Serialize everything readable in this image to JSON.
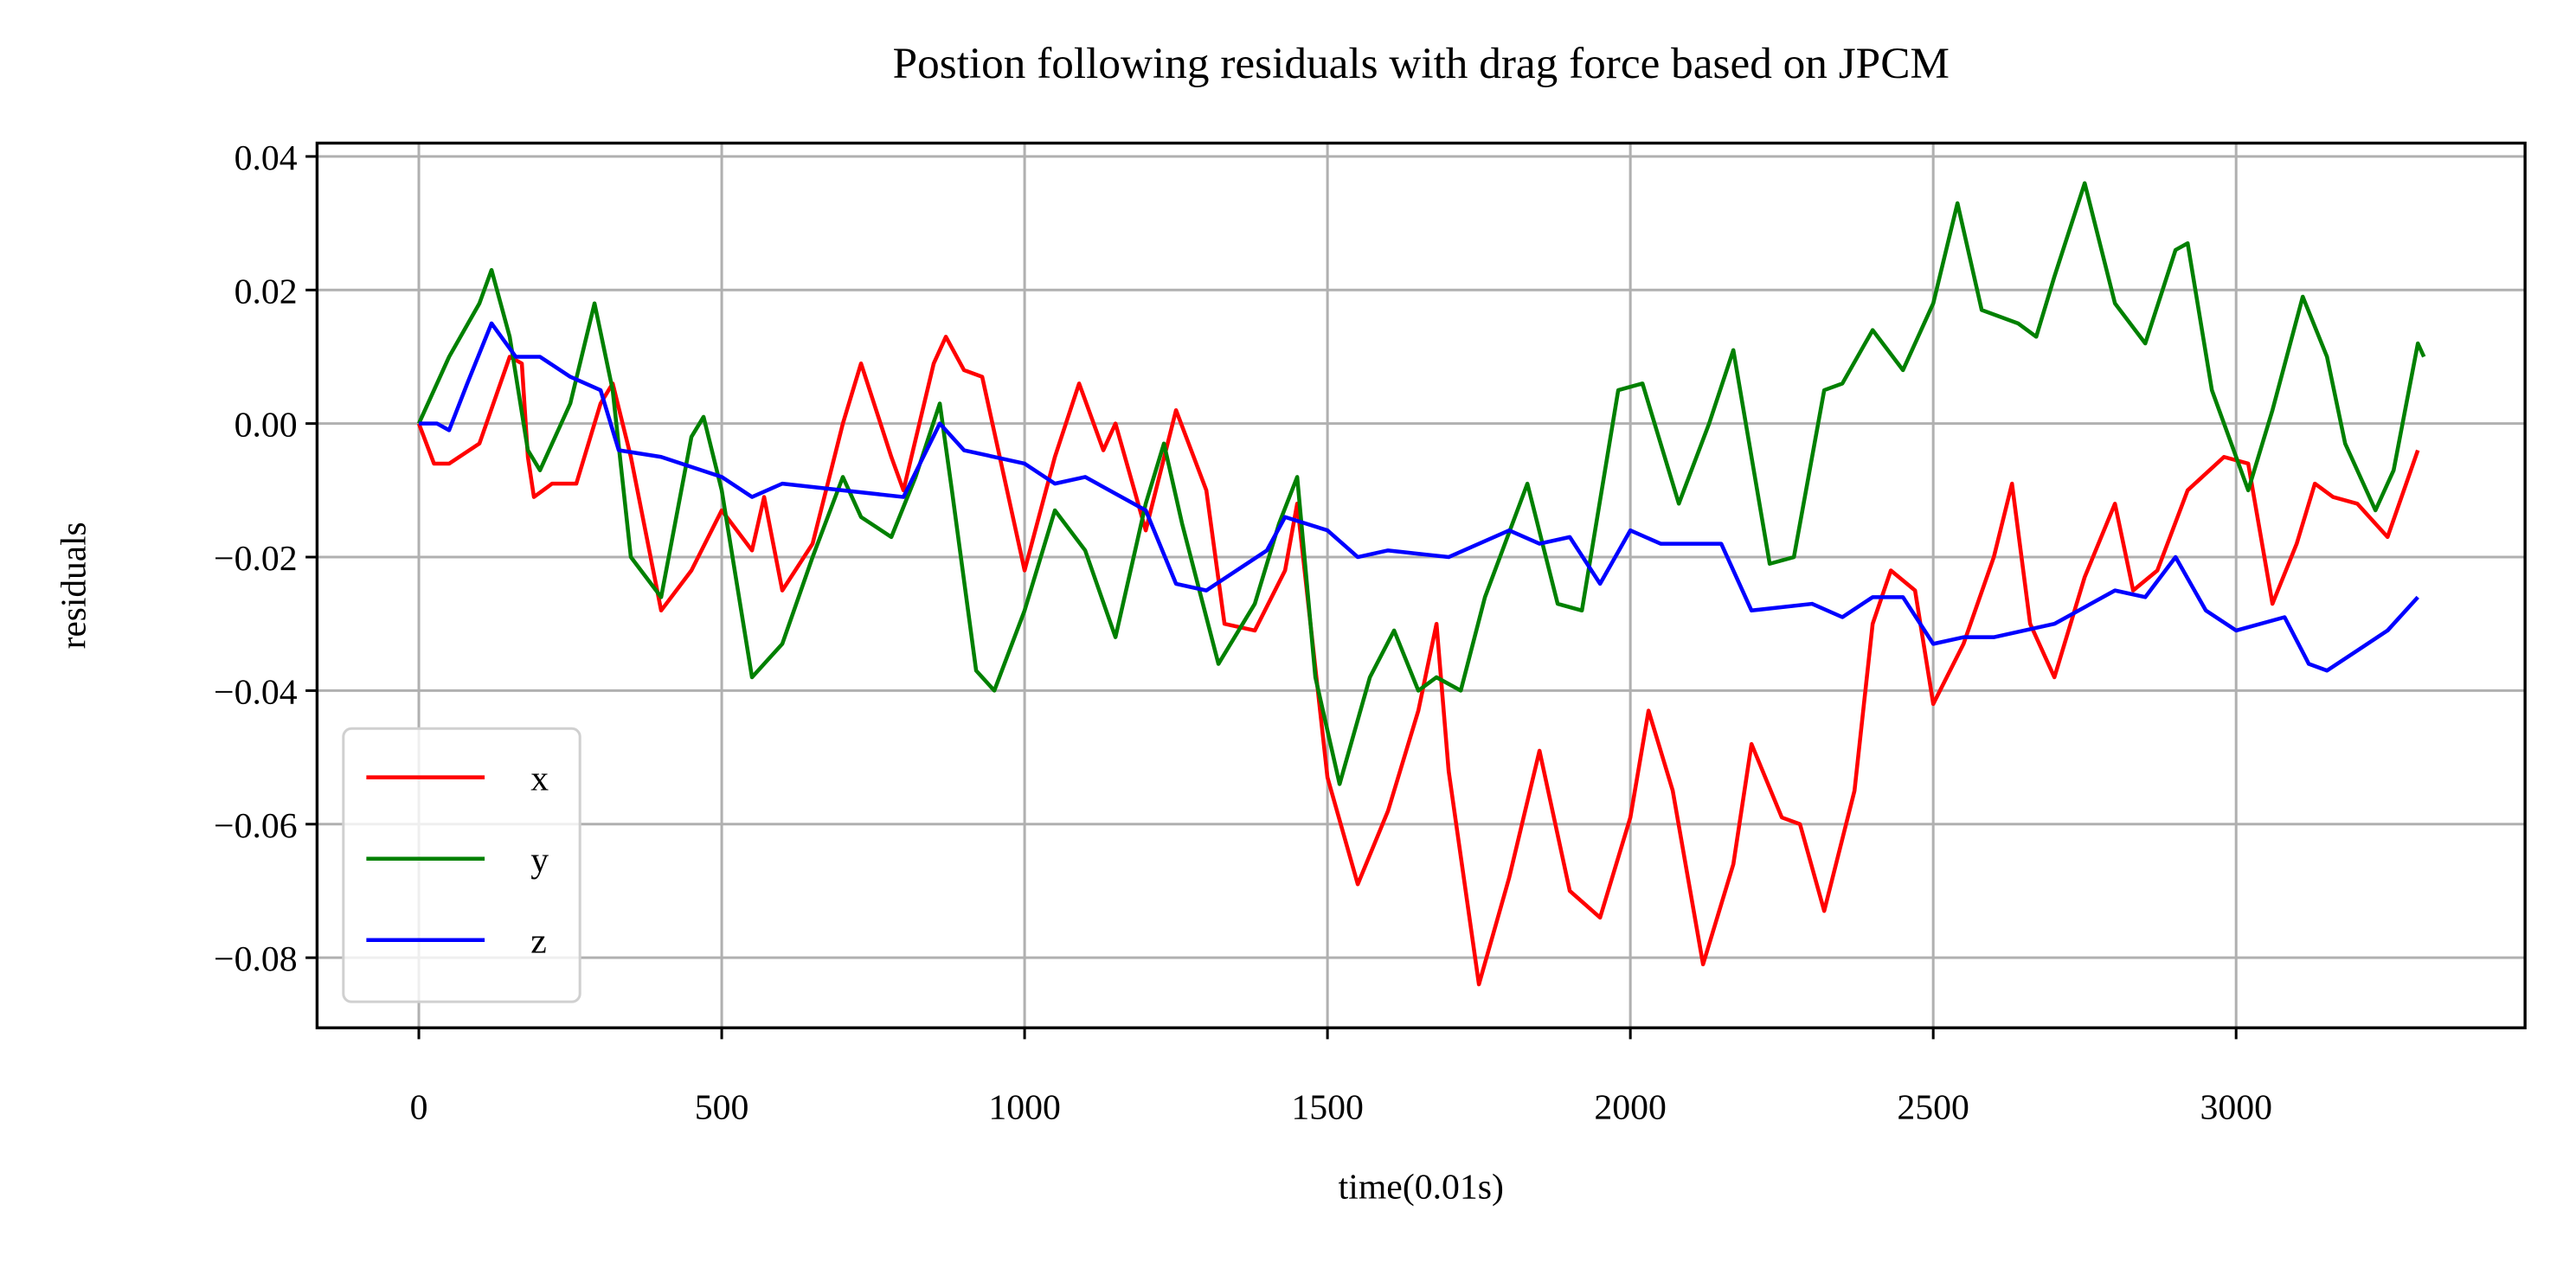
{
  "chart_data": {
    "type": "line",
    "title": "Postion following residuals with drag force based on JPCM",
    "x_label": "time(0.01s)",
    "y_label": "residuals",
    "xlim": [
      -168,
      3477
    ],
    "ylim": [
      -0.0905,
      0.042
    ],
    "xticks": [
      0,
      500,
      1000,
      1500,
      2000,
      2500,
      3000
    ],
    "yticks": [
      {
        "value": 0.04,
        "label": "0.04"
      },
      {
        "value": 0.02,
        "label": "0.02"
      },
      {
        "value": 0.0,
        "label": "0.00"
      },
      {
        "value": -0.02,
        "label": "−0.02"
      },
      {
        "value": -0.04,
        "label": "−0.04"
      },
      {
        "value": -0.06,
        "label": "−0.06"
      },
      {
        "value": -0.08,
        "label": "−0.08"
      }
    ],
    "grid": true,
    "legend": "lower left",
    "series": [
      {
        "name": "x",
        "color": "#ff0000",
        "x": [
          0,
          25,
          50,
          100,
          150,
          170,
          180,
          190,
          220,
          260,
          300,
          320,
          350,
          400,
          450,
          500,
          550,
          570,
          600,
          650,
          700,
          730,
          780,
          800,
          850,
          870,
          900,
          930,
          1000,
          1050,
          1090,
          1130,
          1150,
          1200,
          1250,
          1300,
          1330,
          1380,
          1430,
          1450,
          1500,
          1550,
          1600,
          1650,
          1680,
          1700,
          1750,
          1800,
          1850,
          1900,
          1950,
          2000,
          2030,
          2070,
          2120,
          2170,
          2200,
          2250,
          2280,
          2320,
          2370,
          2400,
          2430,
          2470,
          2500,
          2550,
          2600,
          2630,
          2660,
          2700,
          2750,
          2800,
          2830,
          2870,
          2920,
          2980,
          3020,
          3060,
          3100,
          3130,
          3160,
          3200,
          3250,
          3300
        ],
        "values": [
          0,
          -0.006,
          -0.006,
          -0.003,
          0.01,
          0.009,
          -0.005,
          -0.011,
          -0.009,
          -0.009,
          0.003,
          0.006,
          -0.005,
          -0.028,
          -0.022,
          -0.013,
          -0.019,
          -0.011,
          -0.025,
          -0.018,
          0.0,
          0.009,
          -0.005,
          -0.01,
          0.009,
          0.013,
          0.008,
          0.007,
          -0.022,
          -0.005,
          0.006,
          -0.004,
          0,
          -0.016,
          0.002,
          -0.01,
          -0.03,
          -0.031,
          -0.022,
          -0.012,
          -0.053,
          -0.069,
          -0.058,
          -0.043,
          -0.03,
          -0.052,
          -0.084,
          -0.068,
          -0.049,
          -0.07,
          -0.074,
          -0.059,
          -0.043,
          -0.055,
          -0.081,
          -0.066,
          -0.048,
          -0.059,
          -0.06,
          -0.073,
          -0.055,
          -0.03,
          -0.022,
          -0.025,
          -0.042,
          -0.033,
          -0.02,
          -0.009,
          -0.03,
          -0.038,
          -0.023,
          -0.012,
          -0.025,
          -0.022,
          -0.01,
          -0.005,
          -0.006,
          -0.027,
          -0.018,
          -0.009,
          -0.011,
          -0.012,
          -0.017,
          -0.004
        ]
      },
      {
        "name": "y",
        "color": "#008000",
        "x": [
          0,
          50,
          100,
          120,
          150,
          180,
          200,
          250,
          290,
          320,
          350,
          400,
          450,
          470,
          500,
          550,
          600,
          650,
          700,
          730,
          780,
          820,
          860,
          880,
          920,
          950,
          1000,
          1050,
          1100,
          1150,
          1200,
          1230,
          1260,
          1320,
          1380,
          1420,
          1450,
          1480,
          1520,
          1570,
          1610,
          1650,
          1680,
          1720,
          1760,
          1830,
          1880,
          1920,
          1980,
          2020,
          2080,
          2130,
          2170,
          2230,
          2270,
          2320,
          2350,
          2400,
          2450,
          2500,
          2540,
          2580,
          2640,
          2670,
          2700,
          2750,
          2800,
          2850,
          2900,
          2920,
          2960,
          3020,
          3060,
          3110,
          3150,
          3180,
          3230,
          3260,
          3300,
          3310
        ],
        "values": [
          0,
          0.01,
          0.018,
          0.023,
          0.013,
          -0.004,
          -0.007,
          0.003,
          0.018,
          0.005,
          -0.02,
          -0.026,
          -0.002,
          0.001,
          -0.01,
          -0.038,
          -0.033,
          -0.02,
          -0.008,
          -0.014,
          -0.017,
          -0.008,
          0.003,
          -0.01,
          -0.037,
          -0.04,
          -0.028,
          -0.013,
          -0.019,
          -0.032,
          -0.012,
          -0.003,
          -0.015,
          -0.036,
          -0.027,
          -0.015,
          -0.008,
          -0.038,
          -0.054,
          -0.038,
          -0.031,
          -0.04,
          -0.038,
          -0.04,
          -0.026,
          -0.009,
          -0.027,
          -0.028,
          0.005,
          0.006,
          -0.012,
          0.0,
          0.011,
          -0.021,
          -0.02,
          0.005,
          0.006,
          0.014,
          0.008,
          0.018,
          0.033,
          0.017,
          0.015,
          0.013,
          0.022,
          0.036,
          0.018,
          0.012,
          0.026,
          0.027,
          0.005,
          -0.01,
          0.002,
          0.019,
          0.01,
          -0.003,
          -0.013,
          -0.007,
          0.012,
          0.01
        ]
      },
      {
        "name": "z",
        "color": "#0000ff",
        "x": [
          0,
          30,
          50,
          80,
          120,
          160,
          200,
          250,
          300,
          330,
          400,
          500,
          550,
          600,
          700,
          800,
          860,
          900,
          1000,
          1050,
          1100,
          1200,
          1250,
          1300,
          1400,
          1430,
          1500,
          1550,
          1600,
          1700,
          1800,
          1850,
          1900,
          1950,
          2000,
          2050,
          2150,
          2200,
          2300,
          2350,
          2400,
          2450,
          2500,
          2550,
          2600,
          2700,
          2800,
          2850,
          2900,
          2950,
          3000,
          3080,
          3120,
          3150,
          3200,
          3250,
          3300
        ],
        "values": [
          0,
          0,
          -0.001,
          0.006,
          0.015,
          0.01,
          0.01,
          0.007,
          0.005,
          -0.004,
          -0.005,
          -0.008,
          -0.011,
          -0.009,
          -0.01,
          -0.011,
          0,
          -0.004,
          -0.006,
          -0.009,
          -0.008,
          -0.013,
          -0.024,
          -0.025,
          -0.019,
          -0.014,
          -0.016,
          -0.02,
          -0.019,
          -0.02,
          -0.016,
          -0.018,
          -0.017,
          -0.024,
          -0.016,
          -0.018,
          -0.018,
          -0.028,
          -0.027,
          -0.029,
          -0.026,
          -0.026,
          -0.033,
          -0.032,
          -0.032,
          -0.03,
          -0.025,
          -0.026,
          -0.02,
          -0.028,
          -0.031,
          -0.029,
          -0.036,
          -0.037,
          -0.034,
          -0.031,
          -0.026
        ]
      }
    ]
  }
}
